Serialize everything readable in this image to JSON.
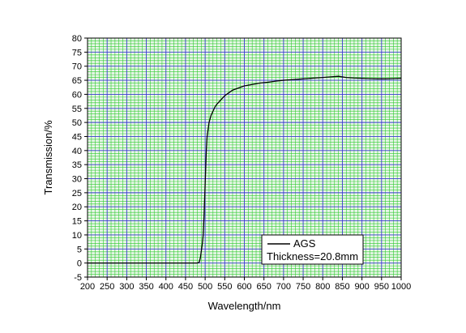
{
  "chart_data": {
    "type": "line",
    "xlabel": "Wavelength/nm",
    "ylabel": "Transmission/%",
    "xlim": [
      200,
      1000
    ],
    "ylim": [
      -5,
      80
    ],
    "x_ticks": [
      200,
      250,
      300,
      350,
      400,
      450,
      500,
      550,
      600,
      650,
      700,
      750,
      800,
      850,
      900,
      950,
      1000
    ],
    "y_ticks": [
      -5,
      0,
      5,
      10,
      15,
      20,
      25,
      30,
      35,
      40,
      45,
      50,
      55,
      60,
      65,
      70,
      75,
      80
    ],
    "grid": true,
    "grid_colors": {
      "major": "#3a3ad0",
      "minor": "#2ecb2e",
      "background": "#eaf6ea"
    },
    "series": [
      {
        "name": "AGS",
        "color": "#000000",
        "x": [
          200,
          250,
          300,
          350,
          400,
          450,
          470,
          480,
          485,
          488,
          490,
          493,
          495,
          497,
          499,
          501,
          503,
          505,
          508,
          510,
          515,
          520,
          525,
          530,
          540,
          550,
          560,
          570,
          580,
          590,
          600,
          620,
          640,
          660,
          680,
          700,
          720,
          740,
          760,
          780,
          800,
          820,
          840,
          860,
          880,
          900,
          920,
          940,
          960,
          980,
          1000
        ],
        "y": [
          0,
          0,
          0,
          0,
          0,
          0,
          0,
          0,
          0.3,
          2,
          4,
          7,
          10,
          16,
          24,
          32,
          40,
          45,
          48,
          50,
          52.5,
          54,
          55.5,
          56.5,
          58,
          59.5,
          60.5,
          61.5,
          62,
          62.5,
          63,
          63.5,
          64,
          64.3,
          64.7,
          65,
          65.2,
          65.4,
          65.6,
          65.8,
          66,
          66.2,
          66.4,
          66,
          65.8,
          65.7,
          65.6,
          65.5,
          65.5,
          65.6,
          65.7
        ]
      }
    ],
    "legend": {
      "placement": "bottom-right",
      "entries": [
        "AGS"
      ],
      "note": "Thickness=20.8mm"
    }
  }
}
